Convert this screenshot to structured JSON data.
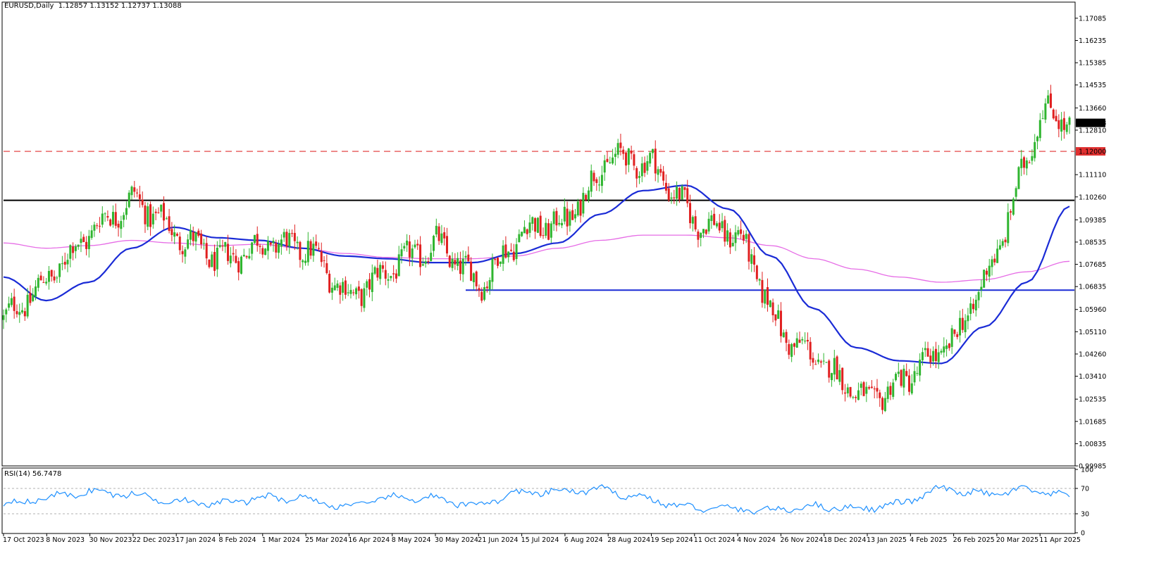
{
  "chart_header": {
    "symbol_tf": "EURUSD,Daily",
    "ohlc": "1.12857 1.13152 1.12737 1.13088"
  },
  "price_axis": {
    "ticks": [
      "1.17085",
      "1.16235",
      "1.15385",
      "1.14535",
      "1.13660",
      "1.12810",
      "1.11110",
      "1.10260",
      "1.09385",
      "1.08535",
      "1.07685",
      "1.06835",
      "1.05960",
      "1.05110",
      "1.04260",
      "1.03410",
      "1.02535",
      "1.01685",
      "1.00835",
      "0.99985"
    ],
    "current_price": "1.13088",
    "level_label": "1.12000"
  },
  "rsi": {
    "label": "RSI(14) 56.7478",
    "ticks": [
      "100",
      "70",
      "30",
      "0"
    ]
  },
  "x_axis": {
    "dates": [
      "17 Oct 2023",
      "8 Nov 2023",
      "30 Nov 2023",
      "22 Dec 2023",
      "17 Jan 2024",
      "8 Feb 2024",
      "1 Mar 2024",
      "25 Mar 2024",
      "16 Apr 2024",
      "8 May 2024",
      "30 May 2024",
      "21 Jun 2024",
      "15 Jul 2024",
      "6 Aug 2024",
      "28 Aug 2024",
      "19 Sep 2024",
      "11 Oct 2024",
      "4 Nov 2024",
      "26 Nov 2024",
      "18 Dec 2024",
      "13 Jan 2025",
      "4 Feb 2025",
      "26 Feb 2025",
      "20 Mar 2025",
      "11 Apr 2025"
    ]
  },
  "colors": {
    "bull": "#2fb52f",
    "bear": "#e02020",
    "ma_fast": "#1a2bd6",
    "ma_slow": "#e66ce6",
    "resistance_dashed": "#e03030",
    "support_line": "#1a2bd6",
    "black_line": "#000000",
    "rsi_line": "#1e90ff"
  },
  "chart_data": {
    "type": "candlestick",
    "symbol": "EURUSD",
    "timeframe": "Daily",
    "ylim": [
      0.99985,
      1.175
    ],
    "horizontal_levels": [
      {
        "price": 1.12,
        "style": "dashed",
        "color": "#e03030"
      },
      {
        "price": 1.1013,
        "style": "solid",
        "color": "#000000"
      },
      {
        "price": 1.067,
        "style": "solid",
        "color": "#1a2bd6",
        "from_date": "30 May 2024"
      }
    ],
    "price_path": [
      {
        "date": "17 Oct 2023",
        "close": 1.056
      },
      {
        "date": "8 Nov 2023",
        "close": 1.071
      },
      {
        "date": "30 Nov 2023",
        "close": 1.09
      },
      {
        "date": "22 Dec 2023",
        "close": 1.102
      },
      {
        "date": "17 Jan 2024",
        "close": 1.088
      },
      {
        "date": "8 Feb 2024",
        "close": 1.078
      },
      {
        "date": "1 Mar 2024",
        "close": 1.085
      },
      {
        "date": "25 Mar 2024",
        "close": 1.083
      },
      {
        "date": "16 Apr 2024",
        "close": 1.064
      },
      {
        "date": "8 May 2024",
        "close": 1.076
      },
      {
        "date": "30 May 2024",
        "close": 1.085
      },
      {
        "date": "21 Jun 2024",
        "close": 1.069
      },
      {
        "date": "15 Jul 2024",
        "close": 1.09
      },
      {
        "date": "6 Aug 2024",
        "close": 1.093
      },
      {
        "date": "28 Aug 2024",
        "close": 1.118
      },
      {
        "date": "19 Sep 2024",
        "close": 1.115
      },
      {
        "date": "11 Oct 2024",
        "close": 1.093
      },
      {
        "date": "4 Nov 2024",
        "close": 1.088
      },
      {
        "date": "26 Nov 2024",
        "close": 1.05
      },
      {
        "date": "18 Dec 2024",
        "close": 1.038
      },
      {
        "date": "13 Jan 2025",
        "close": 1.024
      },
      {
        "date": "4 Feb 2025",
        "close": 1.035
      },
      {
        "date": "26 Feb 2025",
        "close": 1.048
      },
      {
        "date": "20 Mar 2025",
        "close": 1.082
      },
      {
        "date": "11 Apr 2025",
        "close": 1.136
      },
      {
        "date": "end",
        "close": 1.13088
      }
    ],
    "ma_fast_path": [
      1.072,
      1.063,
      1.07,
      1.083,
      1.091,
      1.087,
      1.086,
      1.083,
      1.08,
      1.079,
      1.0775,
      1.0775,
      1.081,
      1.085,
      1.096,
      1.105,
      1.107,
      1.098,
      1.08,
      1.06,
      1.045,
      1.04,
      1.039,
      1.053,
      1.07,
      1.099
    ],
    "ma_slow_path": [
      1.085,
      1.083,
      1.084,
      1.086,
      1.085,
      1.084,
      1.0845,
      1.083,
      1.081,
      1.0795,
      1.079,
      1.079,
      1.08,
      1.083,
      1.086,
      1.088,
      1.088,
      1.087,
      1.084,
      1.079,
      1.075,
      1.072,
      1.07,
      1.071,
      1.074,
      1.078
    ],
    "rsi_path": [
      45,
      55,
      65,
      60,
      50,
      45,
      55,
      55,
      40,
      55,
      55,
      42,
      62,
      65,
      68,
      55,
      40,
      38,
      35,
      42,
      38,
      45,
      70,
      60,
      68,
      56.75
    ]
  }
}
